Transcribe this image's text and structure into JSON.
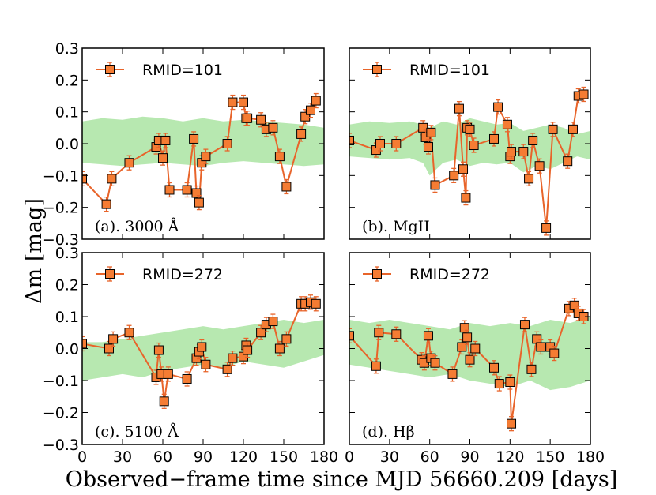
{
  "figure": {
    "ylabel": "Δm [mag]",
    "xlabel": "Observed−frame time since MJD 56660.209 [days]",
    "colors": {
      "marker": "#f57c33",
      "line": "#e8642a",
      "band": "#b7e8b0",
      "edge": "#000000"
    }
  },
  "chart_data": [
    {
      "type": "scatter",
      "panel_label": "(a). 3000 Å",
      "legend": "RMID=101",
      "xlim": [
        0,
        180
      ],
      "ylim": [
        -0.3,
        0.3
      ],
      "xticks": [
        "0",
        "30",
        "60",
        "90",
        "120",
        "150",
        "180"
      ],
      "yticks": [
        "−0.3",
        "−0.2",
        "−0.1",
        "0.0",
        "0.1",
        "0.2",
        "0.3"
      ],
      "band": {
        "x": [
          0,
          15,
          30,
          45,
          60,
          75,
          90,
          105,
          120,
          135,
          150,
          165,
          180
        ],
        "upper": [
          0.07,
          0.08,
          0.075,
          0.085,
          0.08,
          0.07,
          0.08,
          0.07,
          0.075,
          0.07,
          0.065,
          0.06,
          0.05
        ],
        "lower": [
          -0.06,
          -0.065,
          -0.07,
          -0.065,
          -0.06,
          -0.065,
          -0.07,
          -0.06,
          -0.055,
          -0.06,
          -0.065,
          -0.07,
          -0.065
        ]
      },
      "series": [
        {
          "name": "RMID=101",
          "x": [
            0,
            18,
            22,
            35,
            55,
            57,
            60,
            62,
            65,
            78,
            83,
            85,
            87,
            89,
            92,
            108,
            112,
            120,
            122,
            123,
            133,
            137,
            142,
            147,
            152,
            163,
            166,
            170,
            174
          ],
          "y": [
            -0.11,
            -0.19,
            -0.11,
            -0.06,
            -0.01,
            0.01,
            -0.045,
            0.01,
            -0.145,
            -0.145,
            0.015,
            -0.155,
            -0.185,
            -0.06,
            -0.04,
            0.0,
            0.13,
            0.13,
            0.08,
            0.08,
            0.075,
            0.045,
            0.05,
            -0.04,
            -0.135,
            0.03,
            0.085,
            0.105,
            0.135
          ]
        }
      ]
    },
    {
      "type": "scatter",
      "panel_label": "(b). MgII",
      "legend": "RMID=101",
      "xlim": [
        0,
        180
      ],
      "ylim": [
        -0.3,
        0.3
      ],
      "xticks": [
        "0",
        "30",
        "60",
        "90",
        "120",
        "150",
        "180"
      ],
      "yticks": [
        "−0.3",
        "−0.2",
        "−0.1",
        "0.0",
        "0.1",
        "0.2",
        "0.3"
      ],
      "band": {
        "x": [
          0,
          15,
          30,
          45,
          55,
          60,
          70,
          80,
          90,
          100,
          110,
          120,
          130,
          140,
          150,
          160,
          170,
          180
        ],
        "upper": [
          0.06,
          0.07,
          0.065,
          0.07,
          0.06,
          0.05,
          0.07,
          0.06,
          0.08,
          0.07,
          0.06,
          0.065,
          0.04,
          0.05,
          0.06,
          0.05,
          0.03,
          0.04
        ],
        "lower": [
          -0.04,
          -0.045,
          -0.05,
          -0.045,
          -0.06,
          -0.1,
          -0.06,
          -0.05,
          -0.07,
          -0.06,
          -0.065,
          -0.06,
          -0.09,
          -0.07,
          -0.08,
          -0.06,
          -0.04,
          -0.05
        ]
      },
      "series": [
        {
          "name": "RMID=101",
          "x": [
            0,
            20,
            23,
            35,
            55,
            57,
            59,
            61,
            64,
            78,
            82,
            85,
            87,
            88,
            90,
            93,
            108,
            111,
            118,
            120,
            121,
            130,
            134,
            137,
            142,
            147,
            152,
            163,
            167,
            171,
            175
          ],
          "y": [
            0.01,
            -0.02,
            0.0,
            0.0,
            0.05,
            0.02,
            -0.01,
            0.035,
            -0.13,
            -0.1,
            0.11,
            -0.08,
            -0.17,
            0.05,
            0.045,
            -0.005,
            0.015,
            0.115,
            0.06,
            -0.04,
            -0.025,
            -0.025,
            -0.11,
            0.01,
            -0.07,
            -0.265,
            0.045,
            -0.055,
            0.045,
            0.15,
            0.155
          ]
        }
      ]
    },
    {
      "type": "scatter",
      "panel_label": "(c). 5100 Å",
      "legend": "RMID=272",
      "xlim": [
        0,
        180
      ],
      "ylim": [
        -0.3,
        0.3
      ],
      "xticks": [
        "0",
        "30",
        "60",
        "90",
        "120",
        "150",
        "180"
      ],
      "yticks": [
        "−0.3",
        "−0.2",
        "−0.1",
        "0.0",
        "0.1",
        "0.2",
        "0.3"
      ],
      "band": {
        "x": [
          0,
          15,
          30,
          45,
          60,
          75,
          90,
          105,
          120,
          135,
          150,
          165,
          180
        ],
        "upper": [
          0.02,
          0.02,
          0.03,
          0.04,
          0.05,
          0.06,
          0.07,
          0.06,
          0.07,
          0.08,
          0.09,
          0.08,
          0.09
        ],
        "lower": [
          -0.1,
          -0.09,
          -0.08,
          -0.09,
          -0.07,
          -0.06,
          -0.05,
          -0.06,
          -0.04,
          -0.05,
          -0.06,
          -0.04,
          -0.02
        ]
      },
      "series": [
        {
          "name": "RMID=272",
          "x": [
            0,
            20,
            23,
            35,
            55,
            57,
            59,
            61,
            64,
            78,
            85,
            87,
            89,
            92,
            108,
            112,
            120,
            122,
            123,
            133,
            137,
            142,
            147,
            152,
            163,
            166,
            170,
            174
          ],
          "y": [
            0.015,
            0.0,
            0.03,
            0.05,
            -0.09,
            -0.005,
            -0.08,
            -0.165,
            -0.08,
            -0.095,
            -0.03,
            -0.01,
            0.005,
            -0.05,
            -0.065,
            -0.03,
            -0.025,
            0.01,
            -0.005,
            0.05,
            0.075,
            0.085,
            0.0,
            0.03,
            0.14,
            0.14,
            0.145,
            0.14
          ]
        }
      ]
    },
    {
      "type": "scatter",
      "panel_label": "(d). Hβ",
      "legend": "RMID=272",
      "xlim": [
        0,
        180
      ],
      "ylim": [
        -0.3,
        0.3
      ],
      "xticks": [
        "0",
        "30",
        "60",
        "90",
        "120",
        "150",
        "180"
      ],
      "yticks": [
        "−0.3",
        "−0.2",
        "−0.1",
        "0.0",
        "0.1",
        "0.2",
        "0.3"
      ],
      "band": {
        "x": [
          0,
          15,
          30,
          45,
          60,
          75,
          90,
          105,
          120,
          135,
          150,
          165,
          180
        ],
        "upper": [
          0.09,
          0.08,
          0.09,
          0.08,
          0.07,
          0.06,
          0.08,
          0.07,
          0.08,
          0.07,
          0.09,
          0.08,
          0.1
        ],
        "lower": [
          -0.05,
          -0.06,
          -0.07,
          -0.08,
          -0.09,
          -0.08,
          -0.1,
          -0.11,
          -0.12,
          -0.1,
          -0.13,
          -0.12,
          -0.1
        ]
      },
      "series": [
        {
          "name": "RMID=272",
          "x": [
            0,
            20,
            22,
            35,
            54,
            56,
            59,
            61,
            64,
            77,
            84,
            86,
            88,
            90,
            94,
            108,
            112,
            120,
            121,
            131,
            136,
            140,
            143,
            150,
            153,
            164,
            168,
            171,
            175
          ],
          "y": [
            0.04,
            -0.055,
            0.05,
            0.045,
            -0.035,
            -0.045,
            0.04,
            -0.03,
            -0.045,
            -0.08,
            0.005,
            0.065,
            0.035,
            -0.035,
            0.0,
            -0.06,
            -0.11,
            -0.105,
            -0.235,
            0.075,
            -0.065,
            0.03,
            0.005,
            0.005,
            -0.015,
            0.125,
            0.135,
            0.11,
            0.1
          ]
        }
      ]
    }
  ]
}
